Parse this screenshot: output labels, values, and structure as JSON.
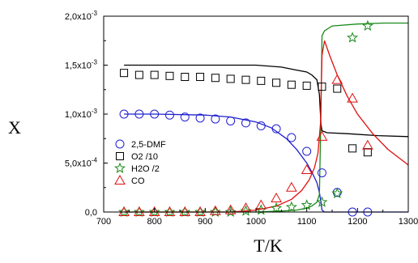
{
  "chart_data": {
    "type": "scatter",
    "xlabel": "T/K",
    "ylabel": "X",
    "xlim": [
      700,
      1300
    ],
    "ylim": [
      0,
      0.002
    ],
    "grid": false,
    "legend_position": "bottom-left",
    "x_ticks": [
      700,
      800,
      900,
      1000,
      1100,
      1200,
      1300
    ],
    "x_tick_labels": [
      "700",
      "800",
      "900",
      "1000",
      "1100",
      "1200",
      "1300"
    ],
    "y_ticks": [
      0,
      0.0005,
      0.001,
      0.0015,
      0.002
    ],
    "y_tick_labels": [
      "0,0",
      "5,0x10",
      "1,0x10",
      "1,5x10",
      "2,0x10"
    ],
    "y_tick_exponents": [
      "",
      "-4",
      "-3",
      "-3",
      "-3"
    ],
    "series": [
      {
        "name": "2,5-DMF",
        "marker": "circle",
        "color": "#1f1fd0",
        "x": [
          740,
          770,
          800,
          830,
          860,
          890,
          920,
          950,
          980,
          1010,
          1040,
          1070,
          1100,
          1130,
          1160,
          1190,
          1220
        ],
        "y": [
          0.001,
          0.001,
          0.001,
          0.00099,
          0.00097,
          0.00096,
          0.00095,
          0.00093,
          0.00091,
          0.00088,
          0.00085,
          0.00076,
          0.00062,
          0.0004,
          0.0002,
          0.0,
          0.0
        ],
        "model": {
          "x": [
            740,
            800,
            900,
            950,
            1000,
            1030,
            1060,
            1080,
            1100,
            1110,
            1120,
            1125,
            1128,
            1130,
            1135,
            1300
          ],
          "y": [
            0.001,
            0.001,
            0.00099,
            0.00097,
            0.00092,
            0.00086,
            0.00075,
            0.00064,
            0.0005,
            0.00041,
            0.0003,
            0.0002,
            0.0001,
            2e-05,
            0.0,
            0.0
          ]
        }
      },
      {
        "name": "O2 /10",
        "marker": "square",
        "color": "#000000",
        "x": [
          740,
          770,
          800,
          830,
          860,
          890,
          920,
          950,
          980,
          1010,
          1040,
          1070,
          1100,
          1130,
          1160,
          1190,
          1220
        ],
        "y": [
          0.00142,
          0.0014,
          0.0014,
          0.00139,
          0.00138,
          0.00138,
          0.00137,
          0.00136,
          0.00135,
          0.00134,
          0.00132,
          0.0013,
          0.00129,
          0.00128,
          0.00126,
          0.00065,
          0.00061
        ],
        "model": {
          "x": [
            740,
            900,
            1000,
            1050,
            1080,
            1100,
            1110,
            1120,
            1125,
            1128,
            1130,
            1140,
            1180,
            1240,
            1300
          ],
          "y": [
            0.0015,
            0.0015,
            0.0015,
            0.00148,
            0.00145,
            0.00143,
            0.0014,
            0.00135,
            0.0012,
            0.0009,
            0.00083,
            0.00081,
            0.0008,
            0.00078,
            0.00077
          ]
        }
      },
      {
        "name": "H2O /2",
        "marker": "star",
        "color": "#1a8a1a",
        "x": [
          740,
          770,
          800,
          830,
          860,
          890,
          920,
          950,
          980,
          1010,
          1040,
          1070,
          1100,
          1130,
          1160,
          1190,
          1220
        ],
        "y": [
          0.0,
          0.0,
          0.0,
          0.0,
          0.0,
          0.0,
          0.0,
          0.0,
          1e-05,
          2e-05,
          4e-05,
          5e-05,
          7e-05,
          0.0001,
          0.00019,
          0.00178,
          0.0019
        ],
        "model": {
          "x": [
            740,
            1000,
            1050,
            1080,
            1100,
            1110,
            1120,
            1125,
            1128,
            1130,
            1135,
            1150,
            1200,
            1250,
            1300
          ],
          "y": [
            0.0,
            0.0,
            1e-05,
            2e-05,
            4e-05,
            6e-05,
            0.0001,
            0.00018,
            0.001,
            0.0018,
            0.00185,
            0.0019,
            0.00192,
            0.00193,
            0.00193
          ]
        }
      },
      {
        "name": "CO",
        "marker": "triangle",
        "color": "#e01010",
        "x": [
          740,
          770,
          800,
          830,
          860,
          890,
          920,
          950,
          980,
          1010,
          1040,
          1070,
          1100,
          1130,
          1160,
          1190,
          1220
        ],
        "y": [
          0.0,
          0.0,
          0.0,
          0.0,
          0.0,
          0.0,
          1e-05,
          2e-05,
          4e-05,
          7e-05,
          0.00014,
          0.00025,
          0.00043,
          0.00077,
          0.00135,
          0.00116,
          0.00068
        ],
        "model": {
          "x": [
            740,
            950,
            1000,
            1040,
            1070,
            1090,
            1105,
            1115,
            1122,
            1127,
            1130,
            1135,
            1145,
            1160,
            1180,
            1200,
            1230,
            1260,
            1300
          ],
          "y": [
            0.0,
            0.0,
            2e-05,
            6e-05,
            0.00013,
            0.00022,
            0.00033,
            0.00045,
            0.0006,
            0.0009,
            0.0016,
            0.00175,
            0.0016,
            0.0014,
            0.00118,
            0.001,
            0.0008,
            0.00064,
            0.00048
          ]
        }
      }
    ]
  }
}
